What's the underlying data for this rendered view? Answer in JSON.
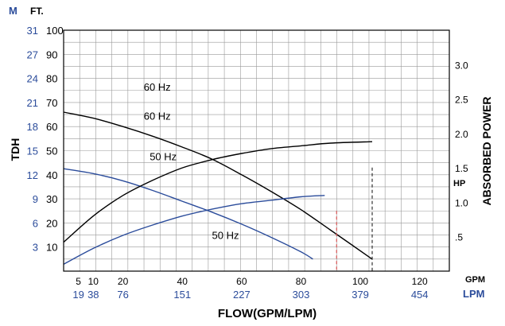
{
  "chart_data": {
    "type": "line",
    "title": "",
    "xlabel": "FLOW(GPM/LPM)",
    "ylabel": "TDH",
    "y2label": "ABSORBED POWER",
    "x_unit_primary": "GPM",
    "x_unit_secondary": "LPM",
    "y_unit_primary": "FT.",
    "y_unit_secondary": "M",
    "y2_unit": "HP",
    "xlim": [
      0,
      130
    ],
    "ylim": [
      0,
      100
    ],
    "y2lim": [
      0,
      3.5
    ],
    "x_ticks_gpm": [
      "5",
      "10",
      "20",
      "40",
      "60",
      "80",
      "100",
      "120"
    ],
    "x_ticks_lpm": [
      "19",
      "38",
      "76",
      "151",
      "227",
      "303",
      "379",
      "454"
    ],
    "x_tick_values": [
      5,
      10,
      20,
      40,
      60,
      80,
      100,
      120
    ],
    "y_ticks_ft": [
      "10",
      "20",
      "30",
      "40",
      "50",
      "60",
      "70",
      "80",
      "90",
      "100"
    ],
    "y_tick_values": [
      10,
      20,
      30,
      40,
      50,
      60,
      70,
      80,
      90,
      100
    ],
    "y_ticks_m": [
      "3",
      "6",
      "9",
      "12",
      "15",
      "18",
      "21",
      "24",
      "27",
      "31"
    ],
    "y2_ticks": [
      ".5",
      "1.0",
      "1.5",
      "2.0",
      "2.5",
      "3.0"
    ],
    "y2_tick_values": [
      0.5,
      1.0,
      1.5,
      2.0,
      2.5,
      3.0
    ],
    "grid": true,
    "colors": {
      "hz60": "#000000",
      "hz50": "#2b4c9b",
      "m_label": "#2b4c9b",
      "lpm_label": "#2b4c9b",
      "marker_50hz": "#e05a5a",
      "marker_60hz": "#333333",
      "grid": "#999999"
    },
    "series": [
      {
        "name": "60 Hz",
        "kind": "head",
        "color": "#000000",
        "x": [
          0,
          10,
          20,
          30,
          40,
          50,
          60,
          70,
          80,
          90,
          104
        ],
        "y": [
          66,
          63.5,
          60,
          56,
          51.5,
          46.5,
          40,
          33,
          25.5,
          17,
          5
        ]
      },
      {
        "name": "50 Hz",
        "kind": "head",
        "color": "#2b4c9b",
        "x": [
          0,
          10,
          20,
          30,
          40,
          50,
          60,
          70,
          80,
          84
        ],
        "y": [
          42.5,
          40.5,
          37.5,
          33.5,
          29,
          24.5,
          19.5,
          14,
          8,
          5
        ]
      },
      {
        "name": "60 Hz",
        "kind": "power",
        "color": "#000000",
        "x": [
          0,
          10,
          20,
          30,
          40,
          50,
          60,
          70,
          80,
          90,
          104
        ],
        "y": [
          0.42,
          0.8,
          1.1,
          1.32,
          1.5,
          1.62,
          1.71,
          1.78,
          1.82,
          1.86,
          1.88
        ]
      },
      {
        "name": "50 Hz",
        "kind": "power",
        "color": "#2b4c9b",
        "x": [
          0,
          10,
          20,
          30,
          40,
          50,
          60,
          70,
          80,
          88
        ],
        "y": [
          0.1,
          0.33,
          0.52,
          0.67,
          0.8,
          0.9,
          0.98,
          1.03,
          1.08,
          1.1
        ]
      }
    ],
    "curve_labels": [
      {
        "text": "60 Hz",
        "x": 27,
        "y": 75
      },
      {
        "text": "50 Hz",
        "x": 29,
        "y": 46
      },
      {
        "text": "60 Hz",
        "x": 27,
        "y": 2.2,
        "axis": "y2"
      },
      {
        "text": "50 Hz",
        "x": 50,
        "y": 0.47,
        "axis": "y2"
      }
    ],
    "reference_lines": [
      {
        "x": 92,
        "y_top": 25,
        "color": "#e05a5a"
      },
      {
        "x": 104,
        "y_top": 43,
        "color": "#333333"
      }
    ]
  }
}
